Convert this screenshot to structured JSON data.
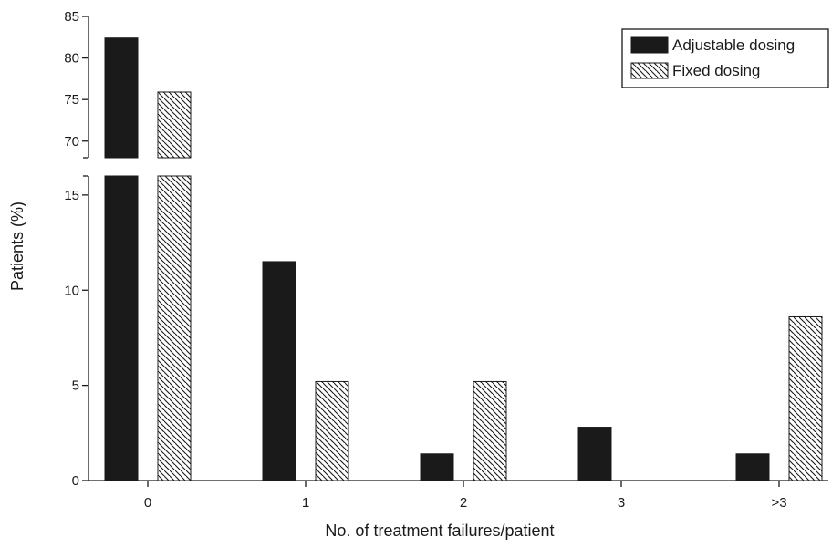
{
  "chart_data": {
    "type": "bar",
    "title": "",
    "xlabel": "No. of treatment failures/patient",
    "ylabel": "Patients (%)",
    "categories": [
      "0",
      "1",
      "2",
      "3",
      ">3"
    ],
    "series": [
      {
        "name": "Adjustable dosing",
        "pattern": "solid",
        "color": "#1a1a1a",
        "values": [
          82.4,
          11.5,
          1.4,
          2.8,
          1.4
        ]
      },
      {
        "name": "Fixed dosing",
        "pattern": "hatched",
        "color": "#1a1a1a",
        "values": [
          75.9,
          5.2,
          5.2,
          0,
          8.6
        ]
      }
    ],
    "y_axis": {
      "broken": true,
      "lower_range": [
        0,
        16
      ],
      "upper_range": [
        68,
        85
      ],
      "lower_ticks": [
        "0",
        "5",
        "10",
        "15"
      ],
      "upper_ticks": [
        "70",
        "75",
        "80",
        "85"
      ]
    },
    "grid": false,
    "legend_position": "top-right"
  }
}
